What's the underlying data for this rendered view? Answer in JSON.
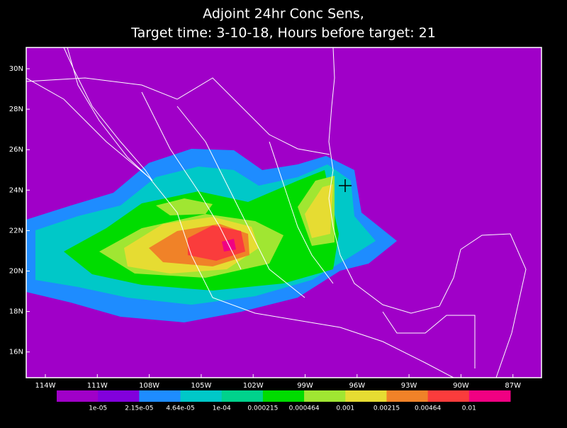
{
  "header": {
    "title": "Adjoint 24hr Conc Sens,",
    "subtitle": "Target time: 3-10-18, Hours before target: 21"
  },
  "map": {
    "lat_labels": [
      "30N",
      "28N",
      "26N",
      "24N",
      "22N",
      "20N",
      "18N",
      "16N"
    ],
    "lon_labels": [
      "114W",
      "111W",
      "108W",
      "105W",
      "102W",
      "99W",
      "96W",
      "93W",
      "90W",
      "87W"
    ]
  },
  "colorbar": {
    "colors": [
      "#a000c8",
      "#8200dc",
      "#1e8cff",
      "#00c8c8",
      "#00d28c",
      "#00dc00",
      "#a0e632",
      "#e6dc32",
      "#f08228",
      "#fa3c3c",
      "#f00082"
    ],
    "labels": [
      "1e-05",
      "2.15e-05",
      "4.64e-05",
      "1e-04",
      "0.000215",
      "0.000464",
      "0.001",
      "0.00215",
      "0.00464",
      "0.01"
    ]
  }
}
